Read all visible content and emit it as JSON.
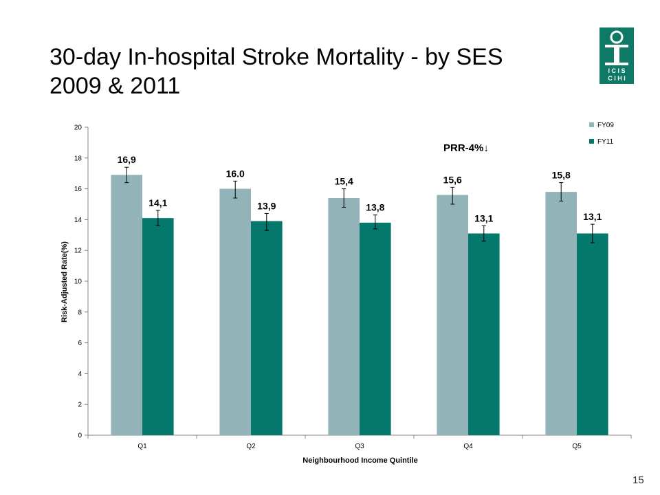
{
  "slide": {
    "title_line1": "30-day In-hospital Stroke Mortality - by SES",
    "title_line2": "2009  & 2011",
    "page_number": "15",
    "logo": {
      "icon": "icis-cihi-logo",
      "text_top": "I C I S",
      "text_bottom": "C I H I",
      "color": "#0e7a66"
    }
  },
  "chart_data": {
    "type": "bar",
    "categories": [
      "Q1",
      "Q2",
      "Q3",
      "Q4",
      "Q5"
    ],
    "series": [
      {
        "name": "FY09",
        "values": [
          16.9,
          16.0,
          15.4,
          15.6,
          15.8
        ],
        "labels": [
          "16,9",
          "16.0",
          "15,4",
          "15,6",
          "15,8"
        ],
        "error": [
          [
            16.4,
            17.4
          ],
          [
            15.4,
            16.5
          ],
          [
            14.8,
            16.0
          ],
          [
            15.0,
            16.1
          ],
          [
            15.2,
            16.4
          ]
        ],
        "color": "#92b4b9"
      },
      {
        "name": "FY11",
        "values": [
          14.1,
          13.9,
          13.8,
          13.1,
          13.1
        ],
        "labels": [
          "14,1",
          "13,9",
          "13,8",
          "13,1",
          "13,1"
        ],
        "error": [
          [
            13.6,
            14.6
          ],
          [
            13.3,
            14.4
          ],
          [
            13.4,
            14.3
          ],
          [
            12.6,
            13.6
          ],
          [
            12.5,
            13.7
          ]
        ],
        "color": "#04786c"
      }
    ],
    "ylim": [
      0,
      20
    ],
    "yticks": [
      0,
      2,
      4,
      6,
      8,
      10,
      12,
      14,
      16,
      18,
      20
    ],
    "xlabel": "Neighbourhood Income Quintile",
    "ylabel": "Risk-Adjusted  Rate(%)",
    "annotation": "PRR-4%↓",
    "legend_position": "top-right",
    "grid": false
  }
}
